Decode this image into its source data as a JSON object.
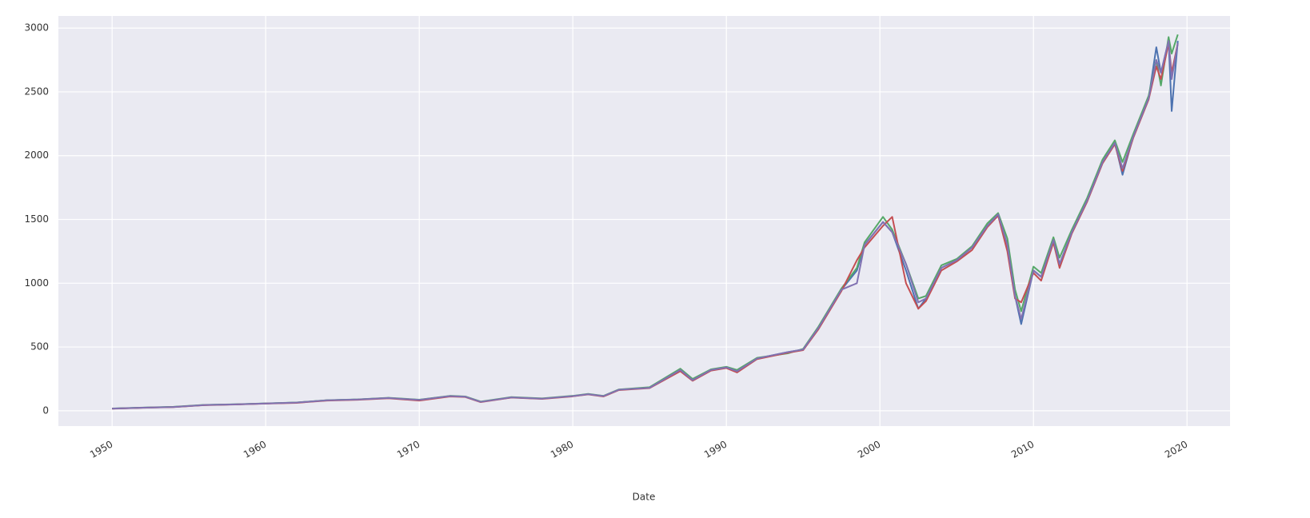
{
  "chart_data": {
    "type": "line",
    "x_label": "Date",
    "x": [
      1950,
      1952,
      1954,
      1956,
      1958,
      1960,
      1962,
      1964,
      1966,
      1968,
      1970,
      1972,
      1973,
      1974,
      1976,
      1978,
      1980,
      1981,
      1982,
      1983,
      1985,
      1987,
      1987.8,
      1989,
      1990,
      1990.7,
      1992,
      1994,
      1995,
      1996,
      1997.5,
      1998.5,
      1999,
      2000.2,
      2000.8,
      2001.7,
      2002.5,
      2003,
      2004,
      2005,
      2006,
      2007,
      2007.7,
      2008.3,
      2008.8,
      2009.2,
      2010,
      2010.5,
      2011.3,
      2011.7,
      2012.5,
      2013.5,
      2014.5,
      2015.3,
      2015.8,
      2016.5,
      2017.5,
      2018,
      2018.3,
      2018.8,
      2019,
      2019.4
    ],
    "series": [
      {
        "color": "#4c72b0",
        "values": [
          17,
          24,
          30,
          45,
          50,
          57,
          64,
          82,
          88,
          100,
          85,
          115,
          110,
          70,
          105,
          95,
          115,
          130,
          115,
          165,
          180,
          320,
          240,
          320,
          340,
          310,
          410,
          460,
          480,
          650,
          950,
          1100,
          1300,
          1480,
          1400,
          1100,
          800,
          880,
          1120,
          1180,
          1280,
          1450,
          1540,
          1300,
          900,
          680,
          1100,
          1050,
          1340,
          1150,
          1400,
          1650,
          1950,
          2100,
          1850,
          2150,
          2450,
          2850,
          2650,
          2900,
          2350,
          2900
        ]
      },
      {
        "color": "#55a868",
        "values": [
          18,
          25,
          31,
          46,
          51,
          58,
          65,
          83,
          89,
          102,
          87,
          117,
          112,
          72,
          107,
          97,
          117,
          132,
          117,
          167,
          185,
          330,
          250,
          325,
          345,
          320,
          415,
          450,
          485,
          660,
          960,
          1120,
          1320,
          1520,
          1420,
          1150,
          880,
          900,
          1140,
          1190,
          1290,
          1470,
          1550,
          1350,
          950,
          780,
          1130,
          1080,
          1360,
          1200,
          1420,
          1670,
          1970,
          2120,
          1950,
          2170,
          2470,
          2750,
          2550,
          2930,
          2800,
          2950
        ]
      },
      {
        "color": "#c44e52",
        "values": [
          16,
          23,
          29,
          44,
          49,
          56,
          62,
          80,
          86,
          98,
          80,
          112,
          108,
          68,
          103,
          93,
          113,
          128,
          112,
          162,
          178,
          310,
          235,
          315,
          335,
          300,
          405,
          455,
          475,
          640,
          940,
          1180,
          1280,
          1450,
          1520,
          1000,
          800,
          860,
          1100,
          1170,
          1260,
          1440,
          1530,
          1250,
          880,
          850,
          1080,
          1020,
          1320,
          1120,
          1390,
          1640,
          1940,
          2090,
          1880,
          2140,
          2440,
          2700,
          2600,
          2880,
          2650,
          2880
        ]
      },
      {
        "color": "#8172b2",
        "values": [
          17,
          24,
          30,
          45,
          50,
          57,
          64,
          82,
          88,
          100,
          85,
          115,
          110,
          70,
          105,
          95,
          115,
          130,
          115,
          165,
          180,
          320,
          240,
          320,
          340,
          310,
          410,
          460,
          480,
          650,
          950,
          1000,
          1300,
          1480,
          1400,
          1150,
          850,
          880,
          1120,
          1180,
          1280,
          1450,
          1540,
          1300,
          900,
          720,
          1100,
          1050,
          1340,
          1150,
          1400,
          1650,
          1950,
          2100,
          1900,
          2150,
          2450,
          2750,
          2650,
          2900,
          2600,
          2880
        ]
      }
    ],
    "xlim": [
      1946.5,
      2022.8
    ],
    "xticks": [
      1950,
      1960,
      1970,
      1980,
      1990,
      2000,
      2010,
      2020
    ],
    "ylim": [
      -120,
      3095
    ],
    "yticks": [
      0,
      500,
      1000,
      1500,
      2000,
      2500,
      3000
    ],
    "grid": true
  }
}
